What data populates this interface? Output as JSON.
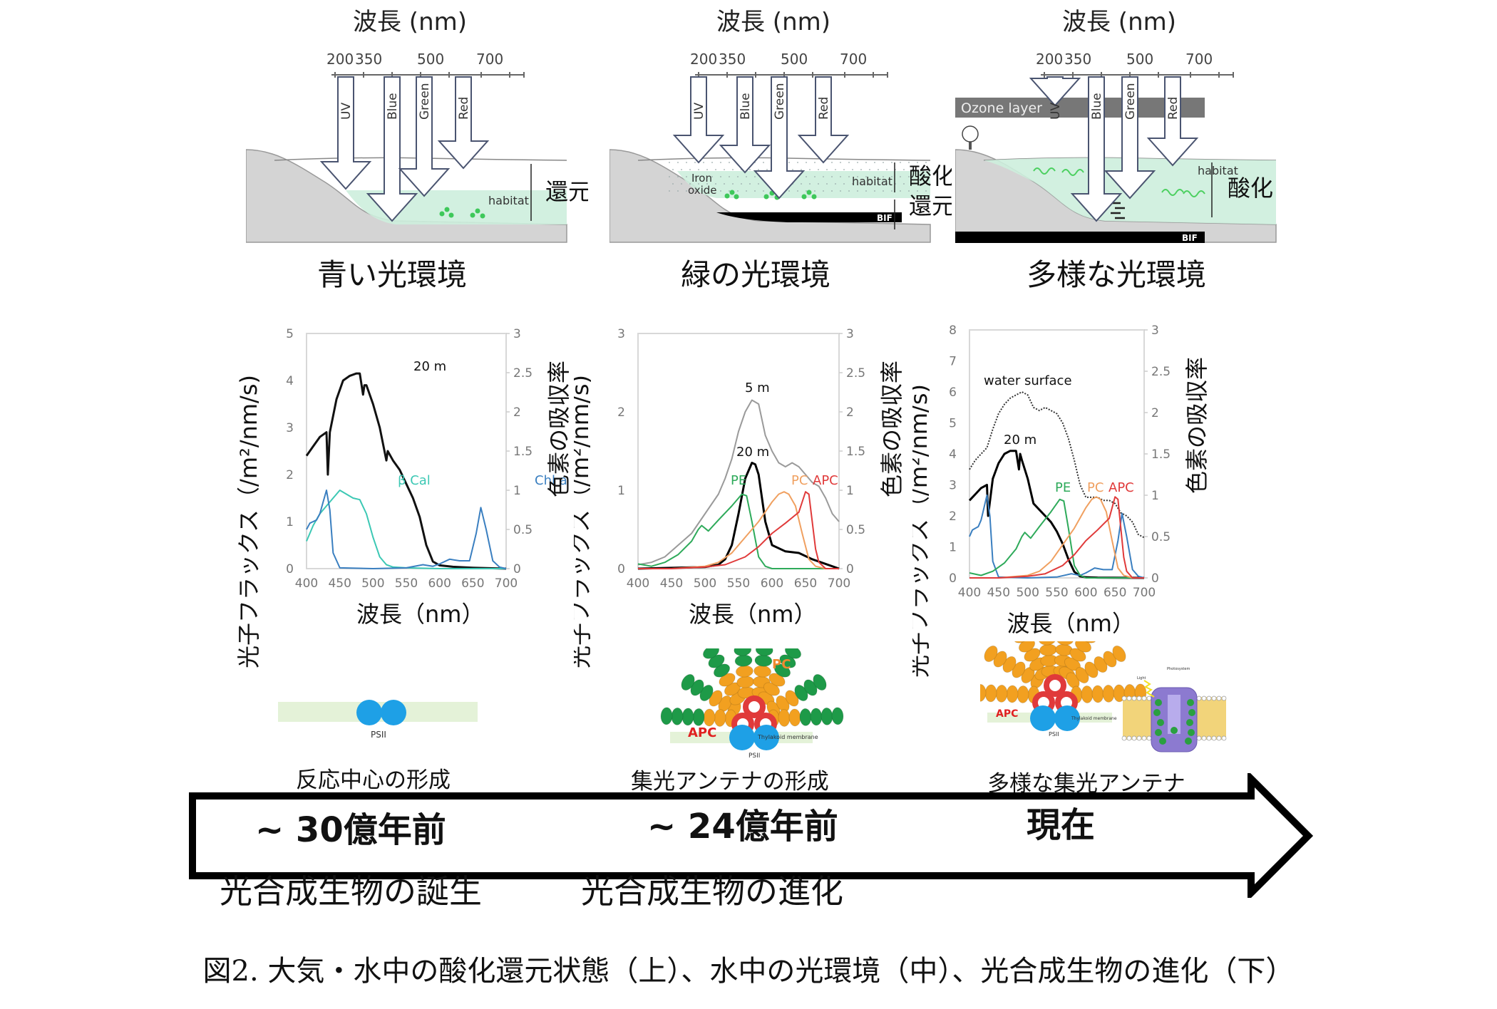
{
  "figure_caption": "図2. 大気・水中の酸化還元状態（上）、水中の光環境（中）、光合成生物の進化（下）",
  "top_panels": [
    {
      "title": "波長 (nm)",
      "ticks": [
        "200",
        "350",
        "500",
        "700"
      ],
      "bands": [
        "UV",
        "Blue",
        "Green",
        "Red"
      ],
      "labels": {
        "habitat": "habitat"
      },
      "redox": [
        "還元"
      ],
      "caption": "青い光環境"
    },
    {
      "title": "波長 (nm)",
      "ticks": [
        "200",
        "350",
        "500",
        "700"
      ],
      "bands": [
        "UV",
        "Blue",
        "Green",
        "Red"
      ],
      "labels": {
        "habitat": "habitat",
        "iron1": "Iron",
        "iron2": "oxide",
        "bif": "BIF"
      },
      "redox": [
        "酸化",
        "還元"
      ],
      "caption": "緑の光環境"
    },
    {
      "title": "波長 (nm)",
      "ticks": [
        "200",
        "350",
        "500",
        "700"
      ],
      "bands": [
        "UV",
        "Blue",
        "Green",
        "Red"
      ],
      "labels": {
        "habitat": "habitat",
        "ozone": "Ozone layer",
        "bif": "BIF"
      },
      "redox": [
        "酸化"
      ],
      "caption": "多様な光環境"
    }
  ],
  "spectra_axis": {
    "ylabel_left": "光子フラックス（/m²/nm/s)",
    "ylabel_right": "色素の吸収率",
    "xlabel": "波長（nm）"
  },
  "chart_data": [
    {
      "type": "line",
      "title": "",
      "xlabel": "波長（nm）",
      "ylabel": "光子フラックス（/m²/nm/s)",
      "ylabel_right": "色素の吸収率",
      "xlim": [
        400,
        700
      ],
      "ylim": [
        0,
        5
      ],
      "ylim_right": [
        0,
        3
      ],
      "x_ticks": [
        400,
        450,
        500,
        550,
        600,
        650,
        700
      ],
      "y_ticks": [
        0,
        1,
        2,
        3,
        4,
        5
      ],
      "y_ticks_right": [
        0,
        0.5,
        1,
        1.5,
        2,
        2.5,
        3
      ],
      "series": [
        {
          "name": "20 m",
          "axis": "left",
          "color": "#111111",
          "x": [
            400,
            410,
            420,
            430,
            432,
            435,
            445,
            455,
            465,
            475,
            480,
            485,
            487,
            490,
            500,
            510,
            520,
            522,
            530,
            540,
            550,
            560,
            570,
            580,
            590,
            600,
            620,
            650,
            700
          ],
          "y": [
            2.4,
            2.6,
            2.8,
            2.9,
            2.0,
            2.9,
            3.6,
            4.0,
            4.1,
            4.15,
            4.15,
            3.7,
            3.9,
            3.9,
            3.5,
            3.0,
            2.3,
            2.5,
            2.3,
            2.1,
            1.8,
            1.5,
            1.1,
            0.5,
            0.15,
            0.07,
            0.04,
            0.02,
            0.0
          ]
        },
        {
          "name": "β Cal",
          "axis": "right",
          "color": "#3cc8b4",
          "x": [
            400,
            410,
            420,
            430,
            440,
            450,
            460,
            470,
            480,
            490,
            500,
            510,
            520,
            530,
            550,
            600,
            700
          ],
          "y": [
            0.35,
            0.55,
            0.7,
            0.8,
            0.9,
            1.0,
            0.95,
            0.9,
            0.88,
            0.7,
            0.4,
            0.15,
            0.05,
            0.02,
            0.01,
            0.0,
            0.0
          ]
        },
        {
          "name": "Chl a",
          "axis": "right",
          "color": "#3a7fc0",
          "x": [
            400,
            405,
            410,
            415,
            420,
            425,
            430,
            435,
            440,
            450,
            500,
            550,
            575,
            590,
            600,
            615,
            630,
            645,
            655,
            662,
            670,
            680,
            690,
            700
          ],
          "y": [
            0.5,
            0.58,
            0.6,
            0.62,
            0.7,
            0.85,
            1.0,
            0.75,
            0.2,
            0.01,
            0.0,
            0.01,
            0.05,
            0.03,
            0.06,
            0.12,
            0.1,
            0.1,
            0.45,
            0.78,
            0.5,
            0.1,
            0.02,
            0.0
          ]
        }
      ],
      "annotations": [
        "20 m",
        "β Cal",
        "Chl a"
      ]
    },
    {
      "type": "line",
      "title": "",
      "xlabel": "波長（nm）",
      "ylabel": "光子フラックス（/m²/nm/s)",
      "ylabel_right": "色素の吸収率",
      "xlim": [
        400,
        700
      ],
      "ylim": [
        0,
        3
      ],
      "ylim_right": [
        0,
        3
      ],
      "x_ticks": [
        400,
        450,
        500,
        550,
        600,
        650,
        700
      ],
      "y_ticks": [
        0,
        1,
        2,
        3
      ],
      "y_ticks_right": [
        0,
        0.5,
        1,
        1.5,
        2,
        2.5,
        3
      ],
      "series": [
        {
          "name": "5 m",
          "axis": "left",
          "color": "#9a9a9a",
          "x": [
            400,
            420,
            440,
            460,
            480,
            500,
            520,
            530,
            540,
            550,
            560,
            570,
            580,
            590,
            600,
            610,
            620,
            630,
            640,
            650,
            660,
            670,
            680,
            690,
            700
          ],
          "y": [
            0.05,
            0.08,
            0.15,
            0.3,
            0.45,
            0.7,
            0.95,
            1.15,
            1.4,
            1.75,
            2.0,
            2.15,
            2.1,
            1.7,
            1.5,
            1.35,
            1.3,
            1.35,
            1.3,
            1.2,
            1.1,
            1.05,
            0.9,
            0.7,
            0.6
          ]
        },
        {
          "name": "20 m",
          "axis": "left",
          "color": "#000000",
          "x": [
            400,
            450,
            500,
            520,
            530,
            540,
            550,
            560,
            570,
            575,
            580,
            590,
            600,
            620,
            640,
            660,
            680,
            700
          ],
          "y": [
            0.0,
            0.01,
            0.02,
            0.05,
            0.12,
            0.3,
            0.7,
            1.15,
            1.35,
            1.33,
            1.2,
            0.6,
            0.3,
            0.22,
            0.2,
            0.12,
            0.06,
            0.0
          ]
        },
        {
          "name": "PE",
          "axis": "right",
          "color": "#2eaa5a",
          "x": [
            400,
            420,
            440,
            460,
            480,
            490,
            495,
            505,
            520,
            540,
            555,
            562,
            570,
            580,
            590,
            600,
            700
          ],
          "y": [
            0.06,
            0.03,
            0.08,
            0.18,
            0.35,
            0.5,
            0.55,
            0.48,
            0.62,
            0.8,
            0.95,
            0.93,
            0.6,
            0.15,
            0.03,
            0.0,
            0.0
          ]
        },
        {
          "name": "PC",
          "axis": "right",
          "color": "#f0a060",
          "x": [
            400,
            450,
            500,
            520,
            540,
            560,
            580,
            600,
            610,
            618,
            625,
            635,
            645,
            655,
            665,
            680,
            700
          ],
          "y": [
            0.0,
            0.0,
            0.03,
            0.08,
            0.2,
            0.4,
            0.6,
            0.85,
            0.95,
            0.98,
            0.95,
            0.8,
            0.45,
            0.12,
            0.03,
            0.0,
            0.0
          ]
        },
        {
          "name": "APC",
          "axis": "right",
          "color": "#e03a3a",
          "x": [
            400,
            450,
            500,
            530,
            560,
            580,
            600,
            620,
            630,
            640,
            645,
            650,
            655,
            660,
            665,
            670,
            680,
            700
          ],
          "y": [
            0.0,
            0.0,
            0.02,
            0.05,
            0.15,
            0.28,
            0.45,
            0.58,
            0.65,
            0.72,
            0.85,
            0.98,
            0.95,
            0.6,
            0.25,
            0.08,
            0.0,
            0.0
          ]
        }
      ],
      "annotations": [
        "5 m",
        "20 m",
        "PE",
        "PC",
        "APC"
      ]
    },
    {
      "type": "line",
      "title": "",
      "xlabel": "波長（nm）",
      "ylabel": "光子フラックス（/m²/nm/s)",
      "ylabel_right": "色素の吸収率",
      "xlim": [
        400,
        700
      ],
      "ylim": [
        0,
        8
      ],
      "ylim_right": [
        0,
        3
      ],
      "x_ticks": [
        400,
        450,
        500,
        550,
        600,
        650,
        700
      ],
      "y_ticks": [
        0,
        1,
        2,
        3,
        4,
        5,
        6,
        7,
        8
      ],
      "y_ticks_right": [
        0,
        0.5,
        1,
        1.5,
        2,
        2.5,
        3
      ],
      "series": [
        {
          "name": "water surface",
          "axis": "left",
          "color": "#333333",
          "dashed": true,
          "x": [
            400,
            410,
            420,
            430,
            440,
            450,
            460,
            470,
            480,
            490,
            500,
            510,
            520,
            530,
            540,
            550,
            560,
            570,
            580,
            590,
            600,
            610,
            620,
            630,
            640,
            650,
            660,
            670,
            680,
            690,
            700
          ],
          "y": [
            3.5,
            3.8,
            4.0,
            4.2,
            4.8,
            5.3,
            5.6,
            5.8,
            5.9,
            6.0,
            5.9,
            5.5,
            5.4,
            5.5,
            5.4,
            5.3,
            5.0,
            4.5,
            3.8,
            3.0,
            2.6,
            2.6,
            2.6,
            2.5,
            2.5,
            2.4,
            2.1,
            2.0,
            1.8,
            1.4,
            1.3
          ]
        },
        {
          "name": "20 m",
          "axis": "left",
          "color": "#000000",
          "x": [
            400,
            410,
            420,
            430,
            432,
            440,
            450,
            460,
            470,
            480,
            485,
            487,
            490,
            500,
            510,
            520,
            530,
            540,
            550,
            560,
            570,
            580,
            590,
            600,
            620,
            700
          ],
          "y": [
            2.5,
            2.7,
            2.9,
            3.0,
            2.0,
            3.2,
            3.7,
            4.0,
            4.1,
            4.1,
            3.5,
            4.0,
            3.8,
            3.2,
            2.4,
            2.2,
            2.0,
            1.8,
            1.5,
            1.1,
            0.6,
            0.2,
            0.05,
            0.02,
            0.01,
            0.0
          ]
        },
        {
          "name": "Chl a",
          "axis": "right",
          "color": "#3a7fc0",
          "x": [
            400,
            405,
            410,
            415,
            420,
            425,
            430,
            435,
            440,
            450,
            500,
            550,
            575,
            590,
            600,
            615,
            630,
            645,
            655,
            662,
            670,
            680,
            690,
            700
          ],
          "y": [
            0.5,
            0.58,
            0.6,
            0.62,
            0.7,
            0.85,
            1.0,
            0.75,
            0.2,
            0.01,
            0.0,
            0.01,
            0.05,
            0.03,
            0.06,
            0.12,
            0.1,
            0.1,
            0.45,
            0.78,
            0.5,
            0.1,
            0.02,
            0.0
          ]
        },
        {
          "name": "PE",
          "axis": "right",
          "color": "#2eaa5a",
          "x": [
            400,
            420,
            440,
            460,
            480,
            490,
            495,
            505,
            520,
            540,
            555,
            562,
            570,
            580,
            590,
            600,
            700
          ],
          "y": [
            0.06,
            0.03,
            0.08,
            0.18,
            0.35,
            0.5,
            0.55,
            0.48,
            0.62,
            0.8,
            0.95,
            0.93,
            0.6,
            0.15,
            0.03,
            0.0,
            0.0
          ]
        },
        {
          "name": "PC",
          "axis": "right",
          "color": "#f0a060",
          "x": [
            400,
            450,
            500,
            520,
            540,
            560,
            580,
            600,
            610,
            618,
            625,
            635,
            645,
            655,
            665,
            680,
            700
          ],
          "y": [
            0.0,
            0.0,
            0.03,
            0.08,
            0.2,
            0.4,
            0.6,
            0.85,
            0.95,
            0.98,
            0.95,
            0.8,
            0.45,
            0.12,
            0.03,
            0.0,
            0.0
          ]
        },
        {
          "name": "APC",
          "axis": "right",
          "color": "#e03a3a",
          "x": [
            400,
            450,
            500,
            530,
            560,
            580,
            600,
            620,
            630,
            640,
            645,
            650,
            655,
            660,
            665,
            670,
            680,
            700
          ],
          "y": [
            0.0,
            0.0,
            0.02,
            0.05,
            0.15,
            0.28,
            0.45,
            0.58,
            0.65,
            0.72,
            0.85,
            0.98,
            0.95,
            0.6,
            0.25,
            0.08,
            0.0,
            0.0
          ]
        }
      ],
      "annotations": [
        "water surface",
        "20 m",
        "PE",
        "PC",
        "APC"
      ]
    }
  ],
  "antenna_diagrams": [
    {
      "labels": [
        "PSII"
      ],
      "caption": "反応中心の形成"
    },
    {
      "labels": [
        "PC",
        "APC",
        "Thylakoid membrane",
        "PSII"
      ],
      "caption": "集光アンテナの形成"
    },
    {
      "labels": [
        "APC",
        "Thylakoid membrane",
        "PSII",
        "Light",
        "Photosystem"
      ],
      "caption": "多様な集光アンテナ"
    }
  ],
  "timeline": {
    "eras": [
      "~ 30億年前",
      "~ 24億年前",
      "現在"
    ],
    "events": [
      "光合成生物の誕生",
      "光合成生物の進化"
    ]
  },
  "colors": {
    "habitat": "#cdeedd",
    "ground": "#d4d4d4",
    "chlorophyll": "#3a7fc0",
    "beta_cal": "#3cc8b4",
    "pe": "#2eaa5a",
    "pc": "#f0a060",
    "apc": "#e03a3a",
    "psii": "#1ea0e6",
    "phycobilin_green": "#1e9a48",
    "phycobilin_orange": "#f2a020"
  }
}
